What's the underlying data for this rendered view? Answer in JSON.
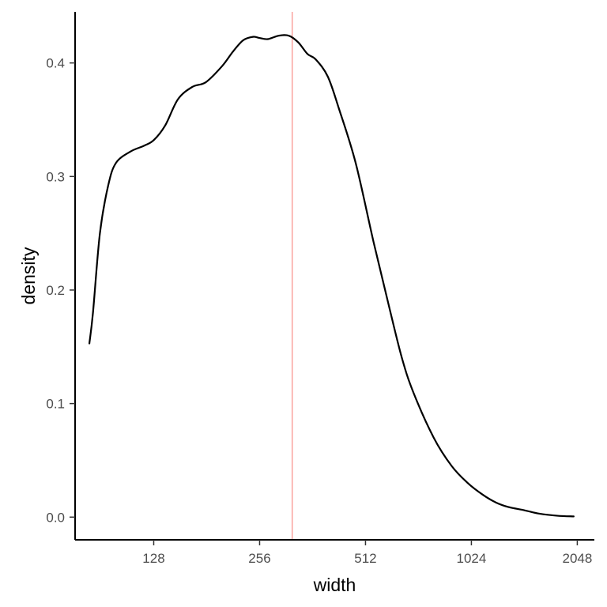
{
  "chart_data": {
    "type": "line",
    "title": "",
    "xlabel": "width",
    "ylabel": "density",
    "x_scale": "log2",
    "xlim": [
      76.5,
      2290
    ],
    "ylim": [
      -0.02,
      0.445
    ],
    "x_ticks": [
      128,
      256,
      512,
      1024,
      2048
    ],
    "x_tick_labels": [
      "128",
      "256",
      "512",
      "1024",
      "2048"
    ],
    "y_ticks": [
      0.0,
      0.1,
      0.2,
      0.3,
      0.4
    ],
    "y_tick_labels": [
      "0.0",
      "0.1",
      "0.2",
      "0.3",
      "0.4"
    ],
    "grid": false,
    "legend": "none",
    "reference_line": {
      "orientation": "vertical",
      "x": 317,
      "color": "#f8766d"
    },
    "series": [
      {
        "color": "#000000",
        "x": [
          84,
          86,
          90,
          95,
          100,
          110,
          120,
          128,
          138,
          150,
          165,
          180,
          200,
          215,
          230,
          245,
          256,
          270,
          290,
          310,
          330,
          350,
          370,
          400,
          430,
          480,
          540,
          600,
          650,
          700,
          800,
          900,
          1000,
          1100,
          1200,
          1300,
          1450,
          1600,
          1800,
          2000
        ],
        "y": [
          0.153,
          0.18,
          0.25,
          0.292,
          0.312,
          0.322,
          0.327,
          0.332,
          0.345,
          0.368,
          0.379,
          0.383,
          0.397,
          0.41,
          0.42,
          0.423,
          0.422,
          0.421,
          0.424,
          0.424,
          0.418,
          0.408,
          0.403,
          0.388,
          0.36,
          0.312,
          0.242,
          0.183,
          0.14,
          0.11,
          0.07,
          0.045,
          0.03,
          0.02,
          0.013,
          0.009,
          0.006,
          0.003,
          0.0012,
          0.0006
        ]
      }
    ]
  }
}
